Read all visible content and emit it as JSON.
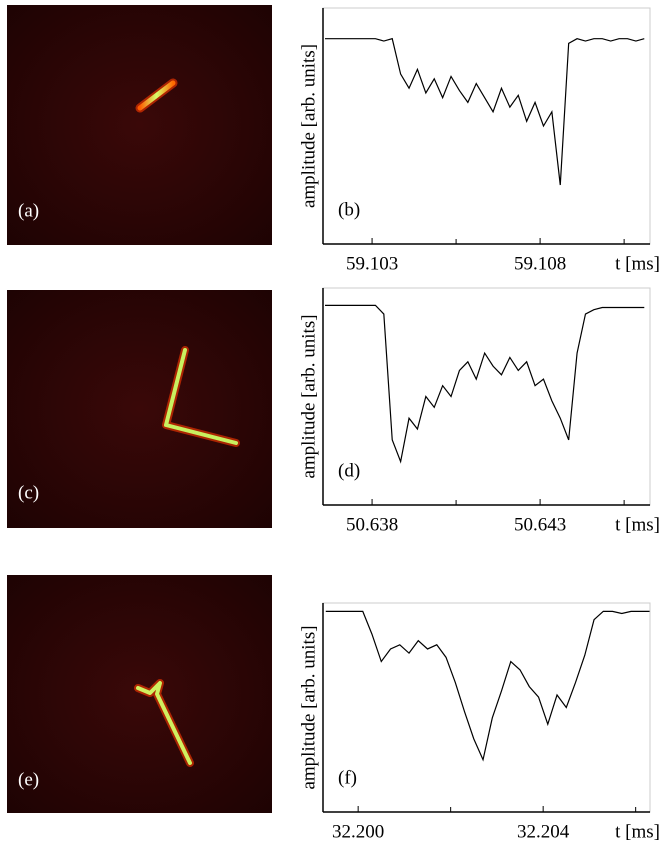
{
  "image_panels": [
    {
      "label": "(a)"
    },
    {
      "label": "(c)"
    },
    {
      "label": "(e)"
    }
  ],
  "chart_data": [
    {
      "type": "line",
      "label": "(b)",
      "ylabel": "amplitude [arb. units]",
      "xlabel": "t [ms]",
      "color": "#000000",
      "x": [
        59.1016,
        59.10185,
        59.1021,
        59.10235,
        59.1026,
        59.10285,
        59.1031,
        59.10335,
        59.1036,
        59.10385,
        59.1041,
        59.10435,
        59.1046,
        59.10485,
        59.1051,
        59.10535,
        59.1056,
        59.10585,
        59.1061,
        59.10635,
        59.1066,
        59.10685,
        59.1071,
        59.10735,
        59.1076,
        59.10785,
        59.1081,
        59.10835,
        59.1086,
        59.10885,
        59.1091,
        59.10935,
        59.1096,
        59.10985,
        59.1101,
        59.11035,
        59.1106,
        59.11085,
        59.1111
      ],
      "values": [
        87,
        87,
        87,
        87,
        87,
        87,
        87,
        86,
        87,
        72,
        66,
        74,
        64,
        70,
        62,
        71,
        65,
        60,
        68,
        62,
        56,
        66,
        58,
        63,
        52,
        60,
        50,
        56,
        25,
        85,
        87,
        86,
        87,
        87,
        86,
        87,
        87,
        86,
        87
      ],
      "xlim": [
        59.10154,
        59.11127
      ],
      "xticks": [
        59.103,
        59.108
      ],
      "minor_xticks": [
        59.1055,
        59.1105
      ],
      "ylim": [
        0,
        100
      ]
    },
    {
      "type": "line",
      "label": "(d)",
      "ylabel": "amplitude [arb. units]",
      "xlabel": "t [ms]",
      "color": "#000000",
      "x": [
        50.6366,
        50.63685,
        50.6371,
        50.63735,
        50.6376,
        50.63785,
        50.6381,
        50.63835,
        50.6386,
        50.63885,
        50.6391,
        50.63935,
        50.6396,
        50.63985,
        50.6401,
        50.64035,
        50.6406,
        50.64085,
        50.6411,
        50.64135,
        50.6416,
        50.64185,
        50.6421,
        50.64235,
        50.6426,
        50.64285,
        50.6431,
        50.64335,
        50.6436,
        50.64385,
        50.6441,
        50.64435,
        50.6446,
        50.64485,
        50.6451,
        50.64535,
        50.6456,
        50.64585,
        50.6461
      ],
      "values": [
        92,
        92,
        92,
        92,
        92,
        92,
        92,
        88,
        30,
        20,
        40,
        35,
        50,
        45,
        55,
        50,
        62,
        66,
        58,
        70,
        64,
        60,
        68,
        62,
        66,
        55,
        58,
        48,
        40,
        30,
        70,
        88,
        90,
        91,
        91,
        91,
        91,
        91,
        91
      ],
      "xlim": [
        50.63654,
        50.64627
      ],
      "xticks": [
        50.638,
        50.643
      ],
      "minor_xticks": [
        50.6405,
        50.6455
      ],
      "ylim": [
        0,
        100
      ]
    },
    {
      "type": "line",
      "label": "(f)",
      "ylabel": "amplitude [arb. units]",
      "xlabel": "t [ms]",
      "color": "#000000",
      "x": [
        32.1993,
        32.1995,
        32.1997,
        32.1999,
        32.2001,
        32.2003,
        32.2005,
        32.2007,
        32.2009,
        32.2011,
        32.2013,
        32.2015,
        32.2017,
        32.2019,
        32.2021,
        32.2023,
        32.2025,
        32.2027,
        32.2029,
        32.2031,
        32.2033,
        32.2035,
        32.2037,
        32.2039,
        32.2041,
        32.2043,
        32.2045,
        32.2047,
        32.2049,
        32.2051,
        32.2053,
        32.2055,
        32.2057,
        32.2059,
        32.2061,
        32.2063
      ],
      "values": [
        96,
        96,
        96,
        96,
        96,
        85,
        72,
        78,
        80,
        76,
        82,
        78,
        80,
        74,
        62,
        48,
        35,
        25,
        45,
        58,
        72,
        68,
        60,
        55,
        42,
        56,
        50,
        62,
        75,
        92,
        96,
        96,
        95,
        96,
        96,
        96
      ],
      "xlim": [
        32.19924,
        32.20631
      ],
      "xticks": [
        {
          "value": 32.2,
          "label": "32.200"
        },
        {
          "value": 32.204,
          "label": "32.204"
        }
      ],
      "minor_xticks": [
        32.202,
        32.206
      ],
      "ylim": [
        0,
        100
      ]
    }
  ]
}
